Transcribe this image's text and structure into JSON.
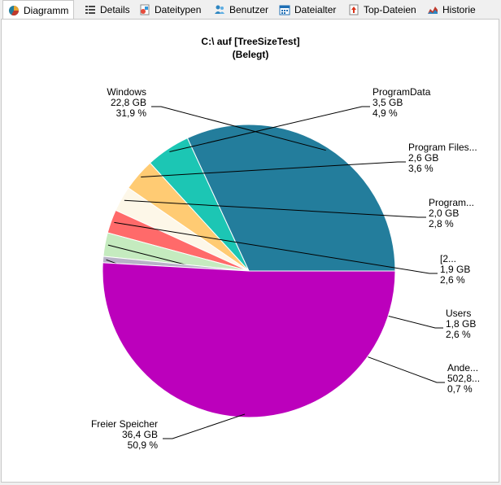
{
  "tabs": [
    {
      "label": "Diagramm",
      "icon": "pie-chart-icon",
      "active": true
    },
    {
      "label": "Details",
      "icon": "details-list-icon",
      "active": false
    },
    {
      "label": "Dateitypen",
      "icon": "file-types-icon",
      "active": false
    },
    {
      "label": "Benutzer",
      "icon": "users-icon",
      "active": false
    },
    {
      "label": "Dateialter",
      "icon": "calendar-icon",
      "active": false
    },
    {
      "label": "Top-Dateien",
      "icon": "top-files-icon",
      "active": false
    },
    {
      "label": "Historie",
      "icon": "history-chart-icon",
      "active": false
    }
  ],
  "chart_data": {
    "type": "pie",
    "title": "C:\\  auf  [TreeSizeTest]",
    "subtitle": "(Belegt)",
    "slices": [
      {
        "name": "Windows",
        "size": "22,8 GB",
        "percent_label": "31,9 %",
        "value": 31.9,
        "color": "#237d9c"
      },
      {
        "name": "ProgramData",
        "size": "3,5 GB",
        "percent_label": "4,9 %",
        "value": 4.9,
        "color": "#1cc6b4"
      },
      {
        "name": "Program Files...",
        "size": "2,6 GB",
        "percent_label": "3,6 %",
        "value": 3.6,
        "color": "#ffcb73"
      },
      {
        "name": "Program...",
        "size": "2,0 GB",
        "percent_label": "2,8 %",
        "value": 2.8,
        "color": "#fdf7e8"
      },
      {
        "name": "[2...",
        "size": "1,9 GB",
        "percent_label": "2,6 %",
        "value": 2.6,
        "color": "#ff6a6a"
      },
      {
        "name": "Users",
        "size": "1,8 GB",
        "percent_label": "2,6 %",
        "value": 2.6,
        "color": "#c5ebbf"
      },
      {
        "name": "Ande...",
        "size": "502,8...",
        "percent_label": "0,7 %",
        "value": 0.7,
        "color": "#b8b2c8"
      },
      {
        "name": "Freier Speicher",
        "size": "36,4 GB",
        "percent_label": "50,9 %",
        "value": 50.9,
        "color": "#bc00bc"
      }
    ]
  }
}
